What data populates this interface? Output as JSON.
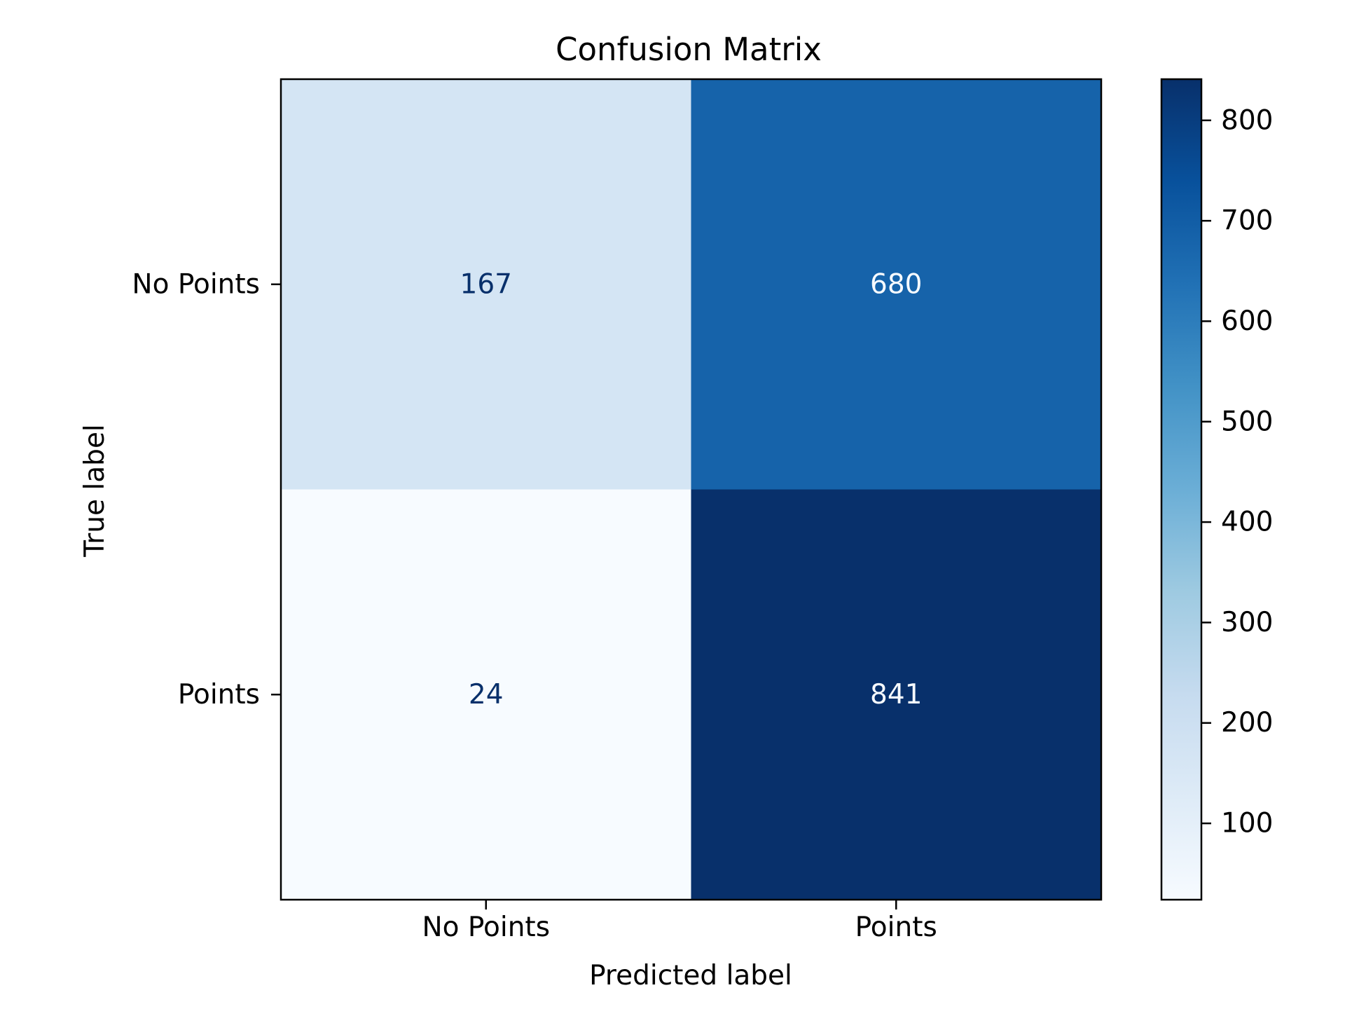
{
  "chart_data": {
    "type": "heatmap",
    "title": "Confusion Matrix",
    "xlabel": "Predicted label",
    "ylabel": "True label",
    "x_categories": [
      "No Points",
      "Points"
    ],
    "y_categories": [
      "No Points",
      "Points"
    ],
    "values": [
      [
        167,
        680
      ],
      [
        24,
        841
      ]
    ],
    "colormap": "Blues",
    "colorbar": {
      "range": [
        24,
        841
      ],
      "ticks": [
        100,
        200,
        300,
        400,
        500,
        600,
        700,
        800
      ]
    },
    "grid": false
  }
}
